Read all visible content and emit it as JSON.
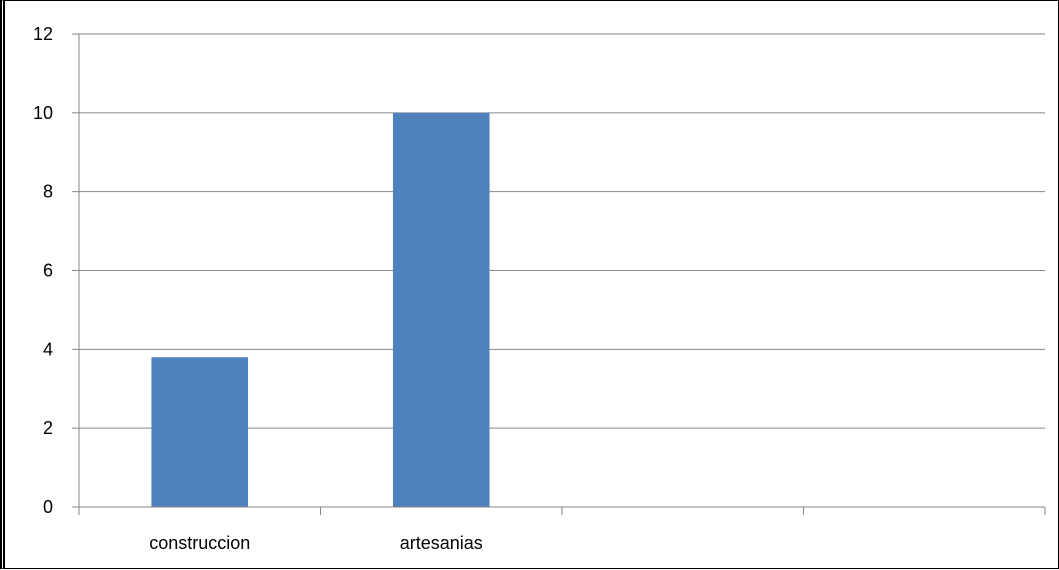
{
  "chart_data": {
    "type": "bar",
    "categories": [
      "construccion",
      "artesanias",
      "",
      ""
    ],
    "values": [
      3.8,
      10,
      null,
      null
    ],
    "title": "",
    "xlabel": "",
    "ylabel": "",
    "ylim": [
      0,
      12
    ],
    "yticks": [
      "0",
      "2",
      "4",
      "6",
      "8",
      "10",
      "12"
    ],
    "grid": true,
    "legend": "none",
    "bar_color": "#4F81BD",
    "gridline_color": "#868686"
  }
}
